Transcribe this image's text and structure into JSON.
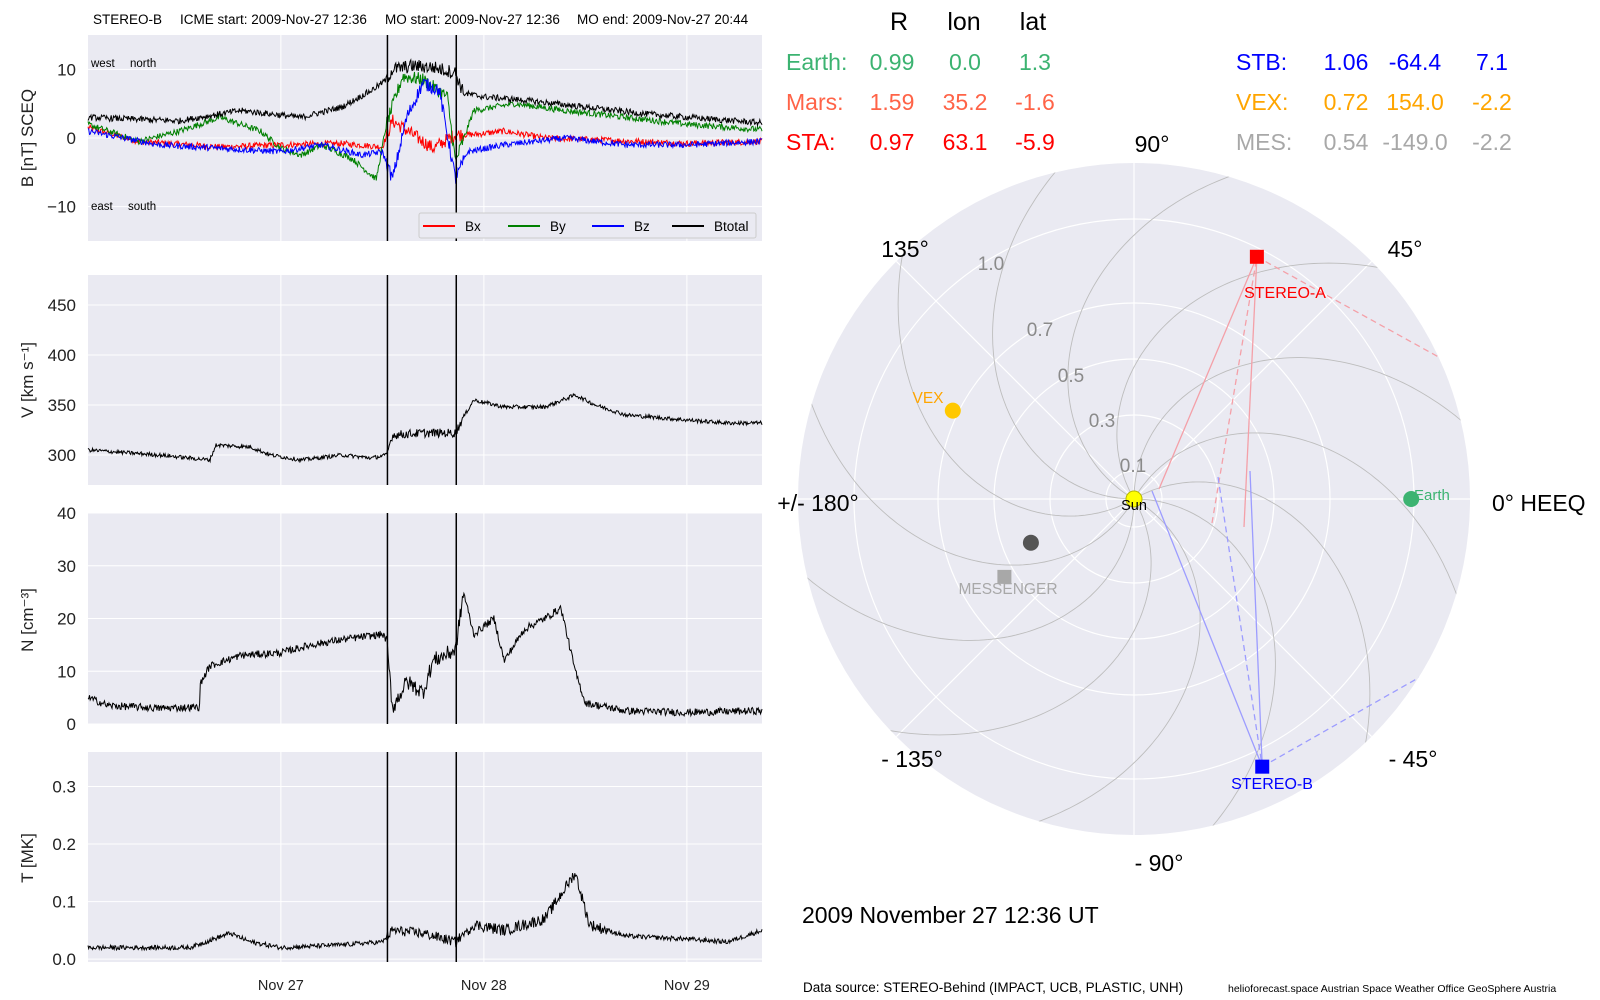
{
  "header": {
    "spacecraft": "STEREO-B",
    "icme_start": "ICME start: 2009-Nov-27 12:36",
    "mo_start": "MO start: 2009-Nov-27 12:36",
    "mo_end": "MO end: 2009-Nov-27 20:44"
  },
  "date_title": "2009 November 27  12:36 UT",
  "footer": {
    "source": "Data source: STEREO-Behind (IMPACT, UCB, PLASTIC, UNH)",
    "credits": "helioforecast.space   Austrian Space Weather Office   GeoSphere Austria"
  },
  "chart_data": [
    {
      "type": "line",
      "ylabel": "B [nT] SCEQ",
      "ylim": [
        -15,
        15
      ],
      "yticks": [
        "−10",
        "0",
        "10"
      ],
      "xticks": [
        "Nov 27",
        "Nov 28",
        "Nov 29"
      ],
      "x_range_days": [
        -0.95,
        2.37
      ],
      "event_lines_days": [
        0.525,
        0.864
      ],
      "annotations": [
        "west",
        "north",
        "east",
        "south"
      ],
      "legend": {
        "placement": "lower-right",
        "entries": [
          "Bx",
          "By",
          "Bz",
          "Btotal"
        ]
      },
      "series": [
        {
          "name": "Bx",
          "color": "#ff0000",
          "knots": [
            [
              -0.95,
              1.5
            ],
            [
              -0.7,
              -0.5
            ],
            [
              -0.3,
              -1.3
            ],
            [
              0.0,
              -1.0
            ],
            [
              0.3,
              -0.8
            ],
            [
              0.5,
              -1.3
            ],
            [
              0.55,
              2.5
            ],
            [
              0.65,
              0.5
            ],
            [
              0.75,
              -1.5
            ],
            [
              0.86,
              0.5
            ],
            [
              0.95,
              0.5
            ],
            [
              1.1,
              1.0
            ],
            [
              1.3,
              0.0
            ],
            [
              1.6,
              -0.3
            ],
            [
              2.0,
              -0.8
            ],
            [
              2.37,
              -0.5
            ]
          ]
        },
        {
          "name": "By",
          "color": "#008000",
          "knots": [
            [
              -0.95,
              2.0
            ],
            [
              -0.7,
              -0.5
            ],
            [
              -0.5,
              1.0
            ],
            [
              -0.3,
              3.0
            ],
            [
              -0.1,
              1.0
            ],
            [
              0.0,
              -1.5
            ],
            [
              0.1,
              -2.5
            ],
            [
              0.2,
              -1.0
            ],
            [
              0.35,
              -3.0
            ],
            [
              0.47,
              -6.0
            ],
            [
              0.52,
              2.0
            ],
            [
              0.6,
              9.0
            ],
            [
              0.7,
              8.5
            ],
            [
              0.82,
              6.0
            ],
            [
              0.86,
              -3.5
            ],
            [
              0.95,
              4.0
            ],
            [
              1.15,
              5.0
            ],
            [
              1.4,
              4.0
            ],
            [
              1.7,
              3.0
            ],
            [
              2.0,
              2.0
            ],
            [
              2.37,
              1.2
            ]
          ]
        },
        {
          "name": "Bz",
          "color": "#0000ff",
          "knots": [
            [
              -0.95,
              1.0
            ],
            [
              -0.6,
              -1.0
            ],
            [
              -0.3,
              -1.5
            ],
            [
              0.0,
              -2.0
            ],
            [
              0.2,
              -1.0
            ],
            [
              0.4,
              -2.5
            ],
            [
              0.5,
              -2.0
            ],
            [
              0.55,
              -6.0
            ],
            [
              0.62,
              3.0
            ],
            [
              0.7,
              8.0
            ],
            [
              0.78,
              7.0
            ],
            [
              0.86,
              -6.0
            ],
            [
              0.92,
              -2.0
            ],
            [
              1.1,
              -1.0
            ],
            [
              1.4,
              0.0
            ],
            [
              1.7,
              -1.0
            ],
            [
              2.0,
              -1.0
            ],
            [
              2.37,
              -0.5
            ]
          ]
        },
        {
          "name": "Btotal",
          "color": "#000000",
          "knots": [
            [
              -0.95,
              3.0
            ],
            [
              -0.5,
              2.5
            ],
            [
              -0.2,
              4.0
            ],
            [
              0.1,
              3.0
            ],
            [
              0.3,
              4.5
            ],
            [
              0.45,
              7.0
            ],
            [
              0.52,
              8.5
            ],
            [
              0.55,
              10.0
            ],
            [
              0.65,
              10.5
            ],
            [
              0.75,
              10.3
            ],
            [
              0.86,
              9.5
            ],
            [
              0.9,
              6.5
            ],
            [
              1.0,
              6.0
            ],
            [
              1.2,
              5.5
            ],
            [
              1.5,
              4.5
            ],
            [
              1.8,
              3.5
            ],
            [
              2.1,
              2.8
            ],
            [
              2.37,
              2.2
            ]
          ]
        }
      ]
    },
    {
      "type": "line",
      "ylabel": "V [km s⁻¹]",
      "ylim": [
        270,
        480
      ],
      "yticks": [
        "300",
        "350",
        "400",
        "450"
      ],
      "xticks": [
        "Nov 27",
        "Nov 28",
        "Nov 29"
      ],
      "x_range_days": [
        -0.95,
        2.37
      ],
      "event_lines_days": [
        0.525,
        0.864
      ],
      "series": [
        {
          "name": "",
          "color": "#000000",
          "knots": [
            [
              -0.95,
              305
            ],
            [
              -0.6,
              300
            ],
            [
              -0.5,
              298
            ],
            [
              -0.35,
              295
            ],
            [
              -0.32,
              310
            ],
            [
              -0.15,
              308
            ],
            [
              -0.05,
              300
            ],
            [
              0.1,
              295
            ],
            [
              0.3,
              300
            ],
            [
              0.45,
              297
            ],
            [
              0.52,
              300
            ],
            [
              0.55,
              320
            ],
            [
              0.7,
              322
            ],
            [
              0.86,
              322
            ],
            [
              0.9,
              338
            ],
            [
              0.95,
              355
            ],
            [
              1.1,
              348
            ],
            [
              1.3,
              348
            ],
            [
              1.45,
              360
            ],
            [
              1.55,
              350
            ],
            [
              1.7,
              340
            ],
            [
              2.0,
              335
            ],
            [
              2.2,
              332
            ],
            [
              2.37,
              332
            ]
          ]
        }
      ]
    },
    {
      "type": "line",
      "ylabel": "N [cm⁻³]",
      "ylim": [
        0,
        40
      ],
      "yticks": [
        "0",
        "10",
        "20",
        "30",
        "40"
      ],
      "xticks": [
        "Nov 27",
        "Nov 28",
        "Nov 29"
      ],
      "x_range_days": [
        -0.95,
        2.37
      ],
      "event_lines_days": [
        0.525,
        0.864
      ],
      "series": [
        {
          "name": "",
          "color": "#000000",
          "knots": [
            [
              -0.95,
              5
            ],
            [
              -0.85,
              3.5
            ],
            [
              -0.6,
              3
            ],
            [
              -0.4,
              3.2
            ],
            [
              -0.42,
              6
            ],
            [
              -0.35,
              11
            ],
            [
              -0.2,
              13
            ],
            [
              0.0,
              13.5
            ],
            [
              0.15,
              15
            ],
            [
              0.3,
              16
            ],
            [
              0.5,
              17
            ],
            [
              0.52,
              16
            ],
            [
              0.55,
              3
            ],
            [
              0.62,
              8
            ],
            [
              0.7,
              6
            ],
            [
              0.75,
              12
            ],
            [
              0.86,
              14
            ],
            [
              0.9,
              25
            ],
            [
              0.95,
              17
            ],
            [
              1.05,
              20
            ],
            [
              1.1,
              12
            ],
            [
              1.2,
              18
            ],
            [
              1.3,
              20
            ],
            [
              1.38,
              22
            ],
            [
              1.45,
              10
            ],
            [
              1.5,
              4
            ],
            [
              1.7,
              2.5
            ],
            [
              2.0,
              2.2
            ],
            [
              2.37,
              2.5
            ]
          ]
        }
      ]
    },
    {
      "type": "line",
      "ylabel": "T [MK]",
      "ylim": [
        -0.005,
        0.36
      ],
      "yticks": [
        "0.0",
        "0.1",
        "0.2",
        "0.3"
      ],
      "xticks": [
        "Nov 27",
        "Nov 28",
        "Nov 29"
      ],
      "x_range_days": [
        -0.95,
        2.37
      ],
      "event_lines_days": [
        0.525,
        0.864
      ],
      "series": [
        {
          "name": "",
          "color": "#000000",
          "knots": [
            [
              -0.95,
              0.02
            ],
            [
              -0.45,
              0.02
            ],
            [
              -0.25,
              0.045
            ],
            [
              -0.15,
              0.03
            ],
            [
              0.0,
              0.02
            ],
            [
              0.3,
              0.025
            ],
            [
              0.5,
              0.03
            ],
            [
              0.55,
              0.05
            ],
            [
              0.7,
              0.045
            ],
            [
              0.86,
              0.03
            ],
            [
              0.95,
              0.06
            ],
            [
              1.1,
              0.05
            ],
            [
              1.3,
              0.07
            ],
            [
              1.45,
              0.15
            ],
            [
              1.52,
              0.06
            ],
            [
              1.7,
              0.04
            ],
            [
              2.0,
              0.035
            ],
            [
              2.2,
              0.03
            ],
            [
              2.37,
              0.05
            ]
          ]
        }
      ]
    },
    {
      "type": "scatter",
      "polar": true,
      "title": "",
      "xlabel": "",
      "ylabel": "",
      "angle_labels": [
        "0° HEEQ",
        "45°",
        "90°",
        "135°",
        "+/- 180°",
        "- 135°",
        "- 90°",
        "- 45°"
      ],
      "radius_labels": [
        "0.1",
        "0.3",
        "0.5",
        "0.7",
        "1.0"
      ],
      "rmax": 1.2,
      "bodies": [
        {
          "name": "Sun",
          "r": 0.0,
          "lon": 0.0,
          "color": "#ffff00",
          "marker": "circle"
        },
        {
          "name": "Earth",
          "r": 0.99,
          "lon": 0.0,
          "color": "#3cb371",
          "marker": "circle"
        },
        {
          "name": "STEREO-A",
          "r": 0.97,
          "lon": 63.1,
          "color": "#ff0000",
          "marker": "square"
        },
        {
          "name": "STEREO-B",
          "r": 1.06,
          "lon": -64.4,
          "color": "#0000ff",
          "marker": "square"
        },
        {
          "name": "VEX",
          "r": 0.72,
          "lon": 154.0,
          "color": "#ffc800",
          "marker": "circle"
        },
        {
          "name": "MESSENGER",
          "r": 0.54,
          "lon": -149.0,
          "color": "#a8a8a8",
          "marker": "square"
        },
        {
          "name": "",
          "r": 0.4,
          "lon": -157.0,
          "color": "#555555",
          "marker": "circle"
        }
      ],
      "position_table": {
        "headers": [
          "R",
          "lon",
          "lat"
        ],
        "rows": [
          {
            "label": "Earth:",
            "r": "0.99",
            "lon": "0.0",
            "lat": "1.3",
            "color": "#3cb371"
          },
          {
            "label": "Mars:",
            "r": "1.59",
            "lon": "35.2",
            "lat": "-1.6",
            "color": "#ff6347"
          },
          {
            "label": "STA:",
            "r": "0.97",
            "lon": "63.1",
            "lat": "-5.9",
            "color": "#ff0000"
          },
          {
            "label": "STB:",
            "r": "1.06",
            "lon": "-64.4",
            "lat": "7.1",
            "color": "#0000ff"
          },
          {
            "label": "VEX:",
            "r": "0.72",
            "lon": "154.0",
            "lat": "-2.2",
            "color": "#ffa500"
          },
          {
            "label": "MES:",
            "r": "0.54",
            "lon": "-149.0",
            "lat": "-2.2",
            "color": "#a8a8a8"
          }
        ]
      }
    }
  ]
}
